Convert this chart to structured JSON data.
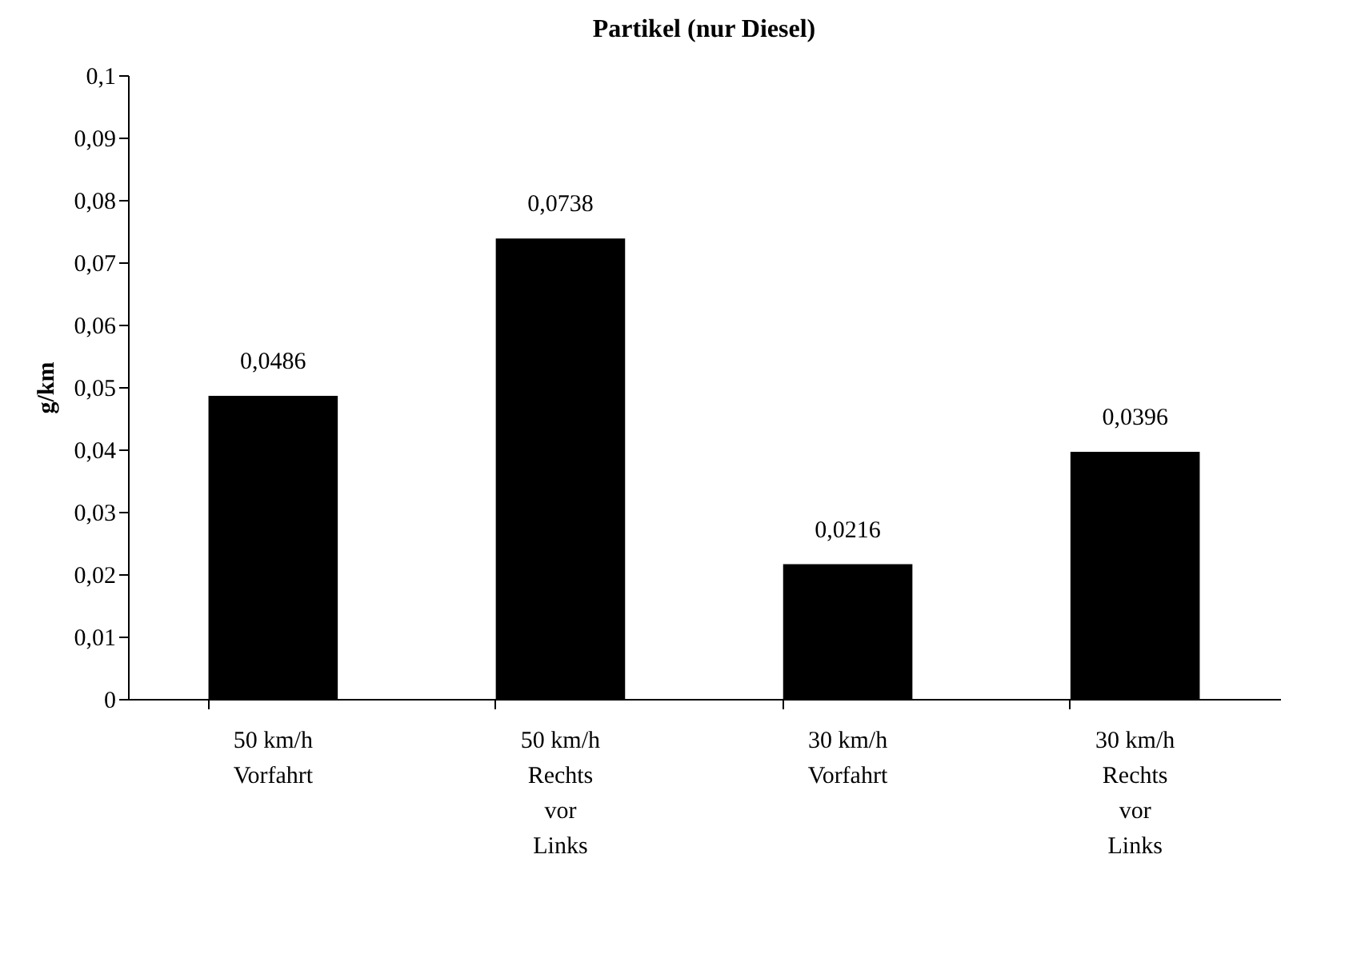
{
  "chart_data": {
    "type": "bar",
    "title": "Partikel (nur Diesel)",
    "ylabel": "g/km",
    "categories": [
      "50 km/h\nVorfahrt",
      "50 km/h\nRechts\nvor\nLinks",
      "30 km/h\nVorfahrt",
      "30 km/h\nRechts\nvor\nLinks"
    ],
    "values": [
      0.0486,
      0.0738,
      0.0216,
      0.0396
    ],
    "value_labels": [
      "0,0486",
      "0,0738",
      "0,0216",
      "0,0396"
    ],
    "color": "#000000",
    "ylim": [
      0,
      0.1
    ],
    "yticks": [
      {
        "value": 0,
        "label": "0"
      },
      {
        "value": 0.01,
        "label": "0,01"
      },
      {
        "value": 0.02,
        "label": "0,02"
      },
      {
        "value": 0.03,
        "label": "0,03"
      },
      {
        "value": 0.04,
        "label": "0,04"
      },
      {
        "value": 0.05,
        "label": "0,05"
      },
      {
        "value": 0.06,
        "label": "0,06"
      },
      {
        "value": 0.07,
        "label": "0,07"
      },
      {
        "value": 0.08,
        "label": "0,08"
      },
      {
        "value": 0.09,
        "label": "0,09"
      },
      {
        "value": 0.1,
        "label": "0,1"
      }
    ],
    "grid": false
  }
}
